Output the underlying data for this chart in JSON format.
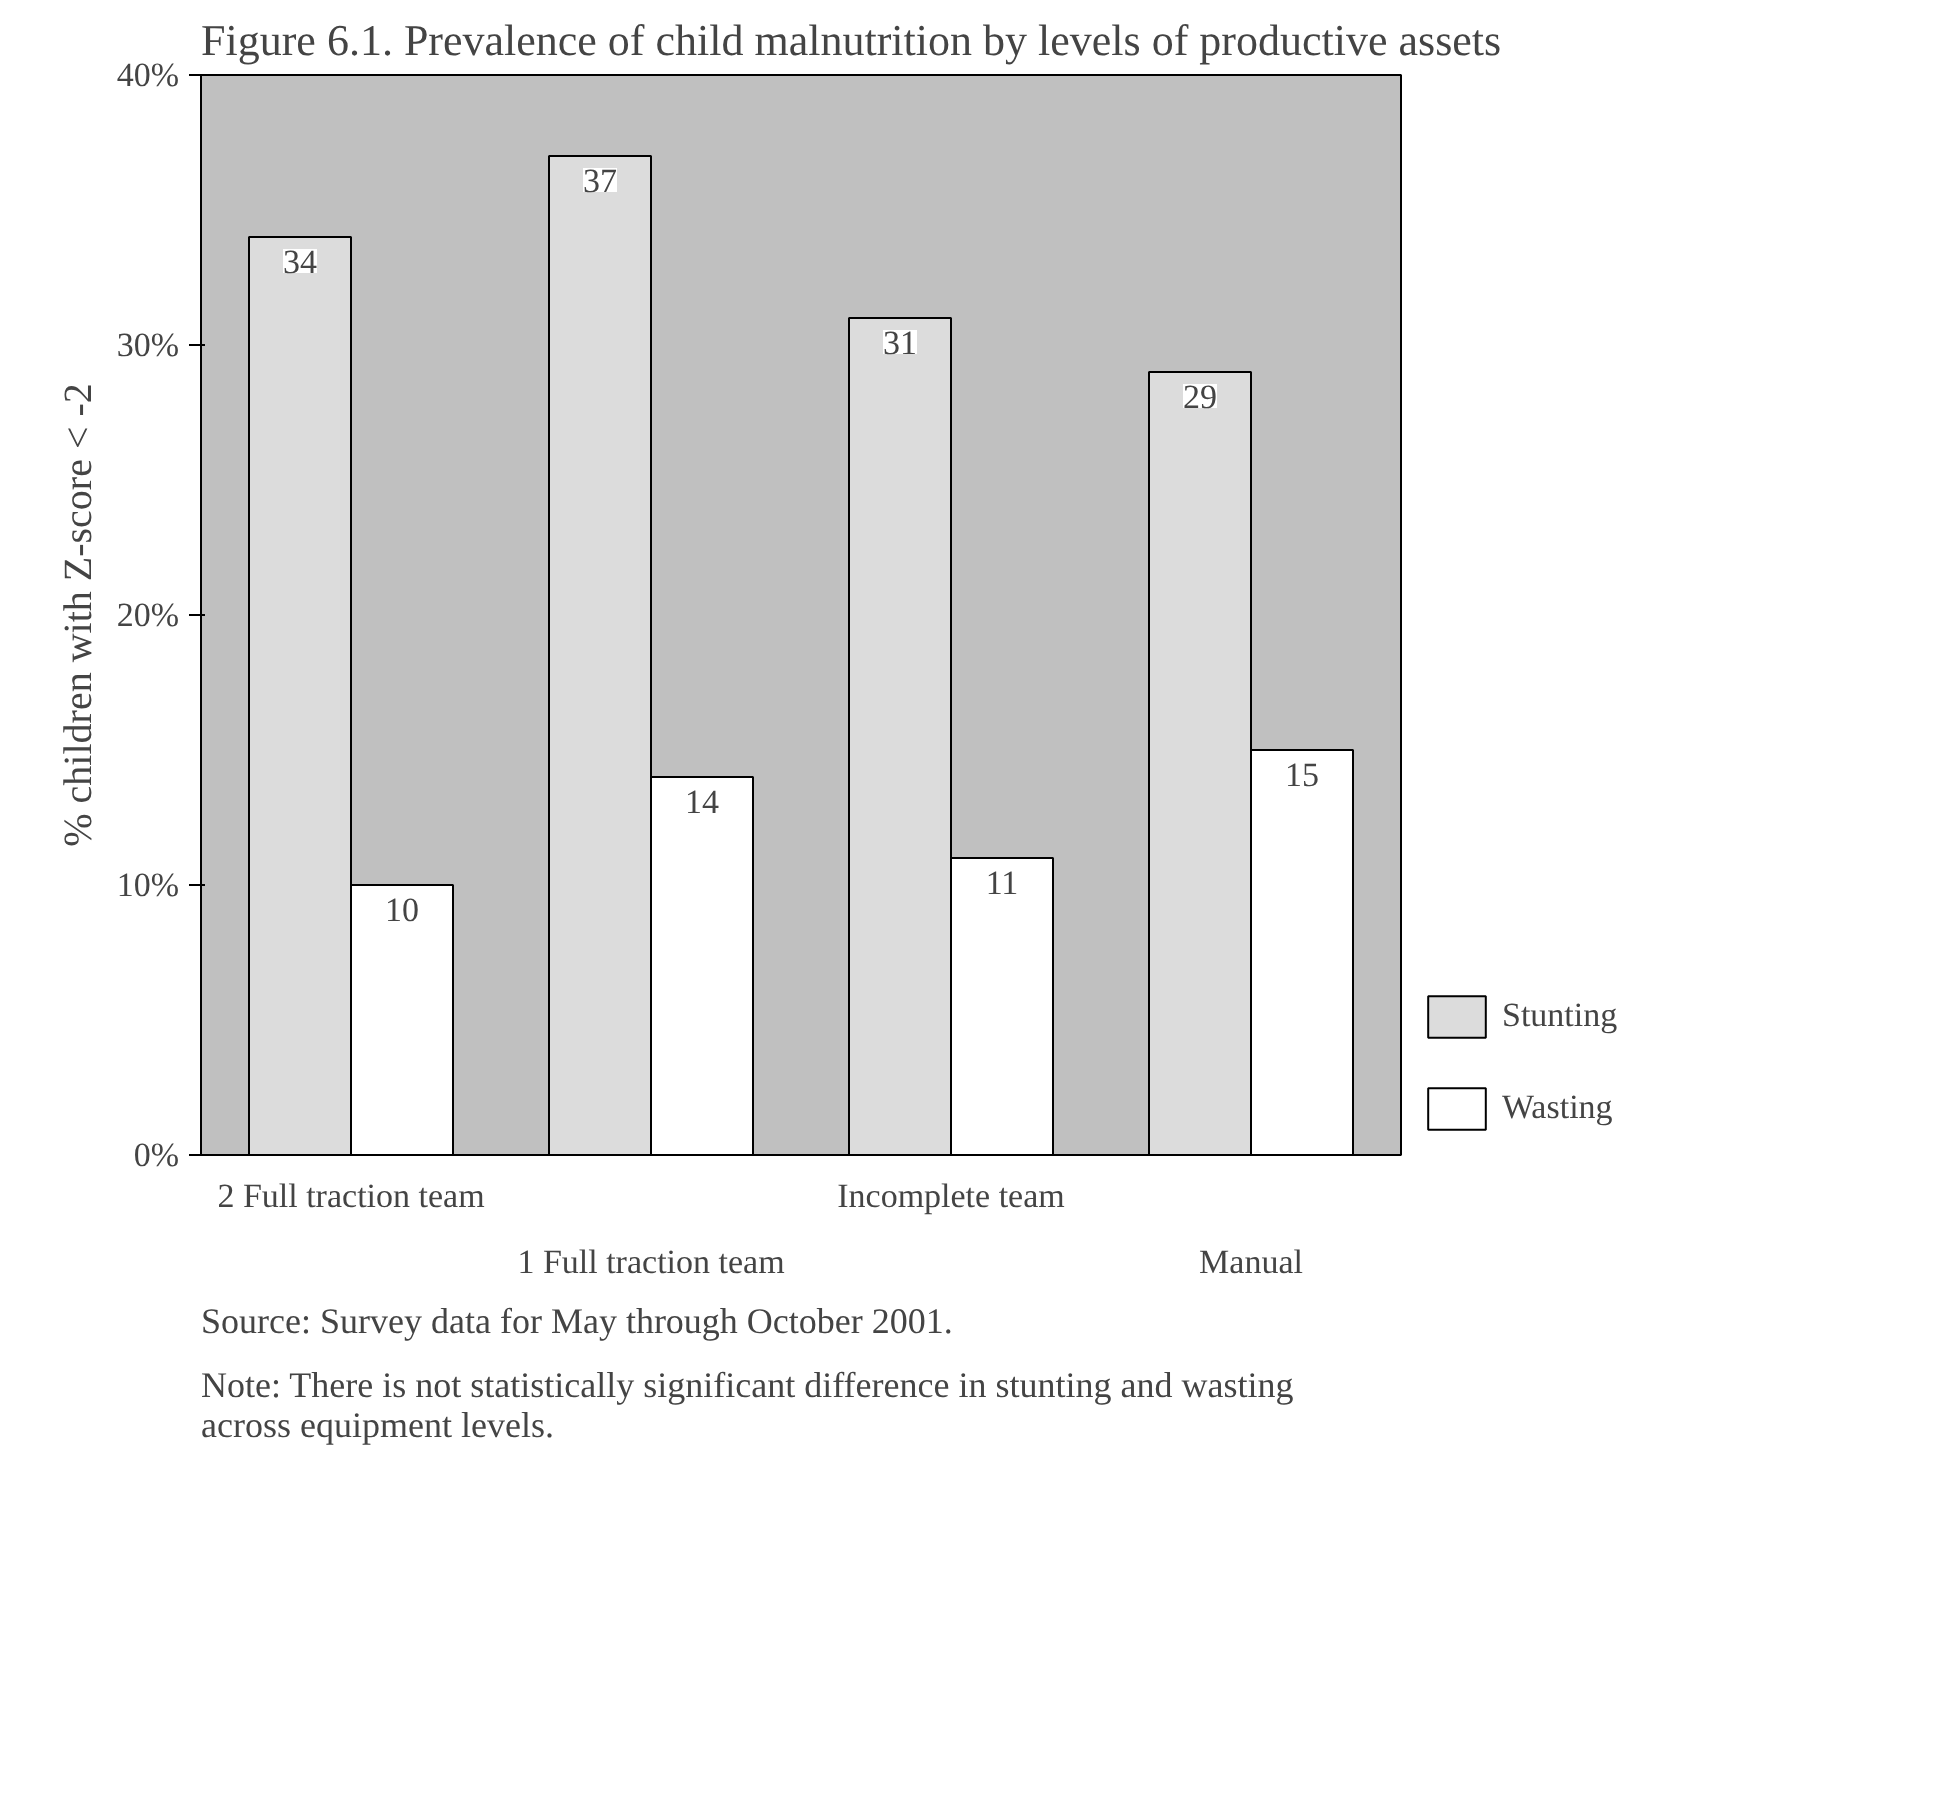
{
  "chart_data": {
    "type": "bar",
    "title": "Figure 6.1. Prevalence of child malnutrition by levels of productive assets",
    "ylabel": "% children with Z-score < -2",
    "categories": [
      "2 Full traction team",
      "1 Full traction team",
      "Incomplete team",
      "Manual"
    ],
    "series": [
      {
        "name": "Stunting",
        "color": "#dcdcdc",
        "values": [
          34,
          37,
          31,
          29
        ]
      },
      {
        "name": "Wasting",
        "color": "#ffffff",
        "values": [
          10,
          14,
          11,
          15
        ]
      }
    ],
    "ylim": [
      0,
      40
    ],
    "yticks": [
      {
        "value": 0,
        "label": "0%"
      },
      {
        "value": 10,
        "label": "10%"
      },
      {
        "value": 20,
        "label": "20%"
      },
      {
        "value": 30,
        "label": "30%"
      },
      {
        "value": 40,
        "label": "40%"
      }
    ],
    "grid": false,
    "legend": "right",
    "data_labels": true,
    "annotations": [
      "Source: Survey data for May through October 2001.",
      "Note: There is not statistically significant difference in stunting and wasting across equipment levels."
    ]
  }
}
